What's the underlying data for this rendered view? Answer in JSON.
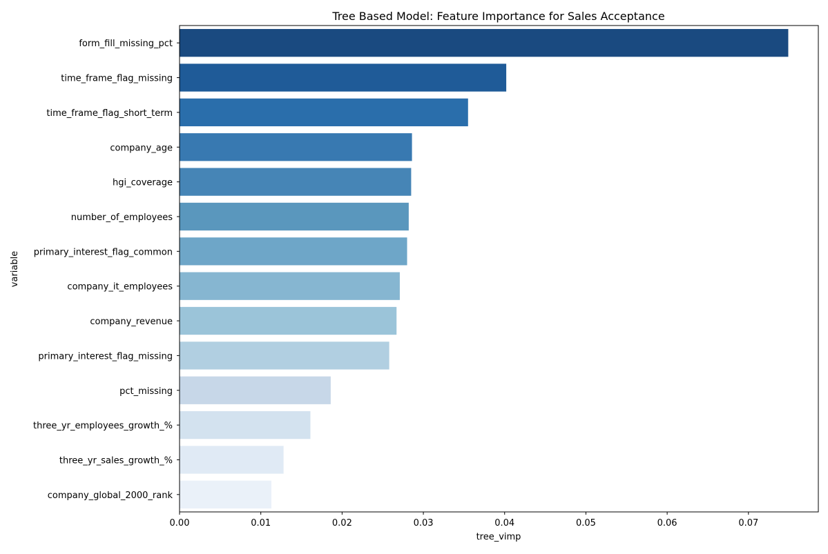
{
  "chart_data": {
    "type": "bar",
    "orientation": "horizontal",
    "title": "Tree Based Model: Feature Importance for Sales Acceptance",
    "xlabel": "tree_vimp",
    "ylabel": "variable",
    "xlim": [
      0,
      0.0786
    ],
    "xticks": [
      0.0,
      0.01,
      0.02,
      0.03,
      0.04,
      0.05,
      0.06,
      0.07
    ],
    "xtick_labels": [
      "0.00",
      "0.01",
      "0.02",
      "0.03",
      "0.04",
      "0.05",
      "0.06",
      "0.07"
    ],
    "grid": false,
    "legend": "none",
    "categories": [
      "form_fill_missing_pct",
      "time_frame_flag_missing",
      "time_frame_flag_short_term",
      "company_age",
      "hgi_coverage",
      "number_of_employees",
      "primary_interest_flag_common",
      "company_it_employees",
      "company_revenue",
      "primary_interest_flag_missing",
      "pct_missing",
      "three_yr_employees_growth_%",
      "three_yr_sales_growth_%",
      "company_global_2000_rank"
    ],
    "values": [
      0.0749,
      0.0402,
      0.0355,
      0.0286,
      0.0285,
      0.0282,
      0.028,
      0.0271,
      0.0267,
      0.0258,
      0.0186,
      0.0161,
      0.0128,
      0.0113
    ],
    "colors": [
      "#1a4a80",
      "#1f5b98",
      "#2a6eab",
      "#3879b1",
      "#4685b6",
      "#5a97bd",
      "#6ea6c8",
      "#86b6d1",
      "#9bc4d9",
      "#b1cfe1",
      "#c7d7e8",
      "#d3e2ef",
      "#e0eaf5",
      "#eaf1f9"
    ]
  }
}
